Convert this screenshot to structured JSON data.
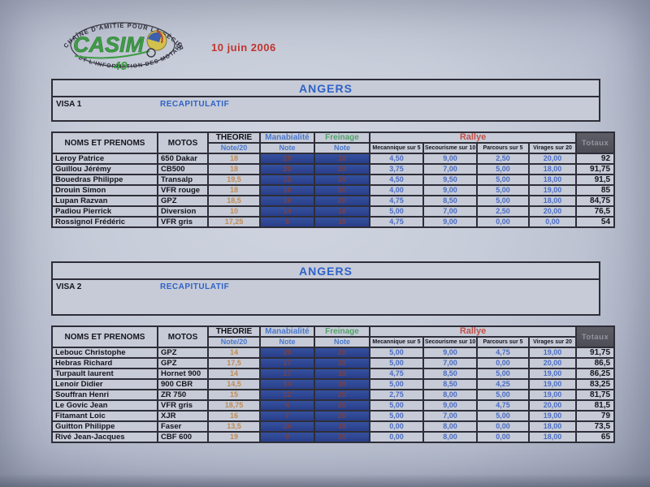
{
  "document": {
    "date": "10 juin 2006",
    "logo": {
      "arc_top": "CHAÎNE D'AMITIÉ POUR LA SÉCURITÉ",
      "arc_bottom": "ET L'INFORMATION DES MOTARDS",
      "name": "CASIM",
      "number": "49"
    }
  },
  "columns": {
    "names": "NOMS ET PRENOMS",
    "motos": "MOTOS",
    "theorie": "THEORIE",
    "note20": "Note/20",
    "maniabilite": "Manabialité",
    "freinage": "Freinage",
    "note": "Note",
    "rallye": "Rallye",
    "rallye_subs": [
      "Mecannique sur 5",
      "Secourisme sur 10",
      "Parcours sur 5",
      "Virages sur 20"
    ],
    "totaux": "Totaux"
  },
  "colors": {
    "title_blue": "#2f62c8",
    "rallye_red": "#c2524a",
    "freinage_green": "#53a06a",
    "theorie_orange": "#c08a52",
    "note_cell_blue": "#2f4a9a",
    "note_value_darkred": "#7e403e",
    "totaux_header_bg": "#54555c",
    "date_red": "#c0342e",
    "logo_green": "#3f9c46"
  },
  "tables": [
    {
      "title": "ANGERS",
      "visa": "VISA 1",
      "recap": "RECAPITULATIF",
      "rows": [
        {
          "name": "Leroy Patrice",
          "moto": "650 Dakar",
          "theorie": "18",
          "mana": "20",
          "frein": "18",
          "mec": "4,50",
          "sec": "9,00",
          "parc": "2,50",
          "vir": "20,00",
          "total": "92"
        },
        {
          "name": "Guillou Jérémy",
          "moto": "CB500",
          "theorie": "18",
          "mana": "20",
          "frein": "20",
          "mec": "3,75",
          "sec": "7,00",
          "parc": "5,00",
          "vir": "18,00",
          "total": "91,75"
        },
        {
          "name": "Bouedras Philippe",
          "moto": "Transalp",
          "theorie": "19,5",
          "mana": "15",
          "frein": "20",
          "mec": "4,50",
          "sec": "9,50",
          "parc": "5,00",
          "vir": "18,00",
          "total": "91,5"
        },
        {
          "name": "Drouin Simon",
          "moto": "VFR rouge",
          "theorie": "18",
          "mana": "10",
          "frein": "20",
          "mec": "4,00",
          "sec": "9,00",
          "parc": "5,00",
          "vir": "19,00",
          "total": "85"
        },
        {
          "name": "Lupan Razvan",
          "moto": "GPZ",
          "theorie": "18,5",
          "mana": "10",
          "frein": "20",
          "mec": "4,75",
          "sec": "8,50",
          "parc": "5,00",
          "vir": "18,00",
          "total": "84,75"
        },
        {
          "name": "Padiou Pierrick",
          "moto": "Diversion",
          "theorie": "10",
          "mana": "14",
          "frein": "18",
          "mec": "5,00",
          "sec": "7,00",
          "parc": "2,50",
          "vir": "20,00",
          "total": "76,5"
        },
        {
          "name": "Rossignol Frédéric",
          "moto": "VFR gris",
          "theorie": "17,25",
          "mana": "5",
          "frein": "18",
          "mec": "4,75",
          "sec": "9,00",
          "parc": "0,00",
          "vir": "0,00",
          "total": "54"
        }
      ]
    },
    {
      "title": "ANGERS",
      "visa": "VISA 2",
      "recap": "RECAPITULATIF",
      "rows": [
        {
          "name": "Lebouc Christophe",
          "moto": "GPZ",
          "theorie": "14",
          "mana": "20",
          "frein": "20",
          "mec": "5,00",
          "sec": "9,00",
          "parc": "4,75",
          "vir": "19,00",
          "total": "91,75"
        },
        {
          "name": "Hebras Richard",
          "moto": "GPZ",
          "theorie": "17,5",
          "mana": "17",
          "frein": "20",
          "mec": "5,00",
          "sec": "7,00",
          "parc": "0,00",
          "vir": "20,00",
          "total": "86,5"
        },
        {
          "name": "Turpault laurent",
          "moto": "Hornet 900",
          "theorie": "14",
          "mana": "17",
          "frein": "18",
          "mec": "4,75",
          "sec": "8,50",
          "parc": "5,00",
          "vir": "19,00",
          "total": "86,25"
        },
        {
          "name": "Lenoir Didier",
          "moto": "900 CBR",
          "theorie": "14,5",
          "mana": "14",
          "frein": "18",
          "mec": "5,00",
          "sec": "8,50",
          "parc": "4,25",
          "vir": "19,00",
          "total": "83,25"
        },
        {
          "name": "Souffran Henri",
          "moto": "ZR 750",
          "theorie": "15",
          "mana": "12",
          "frein": "20",
          "mec": "2,75",
          "sec": "8,00",
          "parc": "5,00",
          "vir": "19,00",
          "total": "81,75"
        },
        {
          "name": "Le Govic Jean",
          "moto": "VFR gris",
          "theorie": "18,75",
          "mana": "4",
          "frein": "20",
          "mec": "5,00",
          "sec": "9,00",
          "parc": "4,75",
          "vir": "20,00",
          "total": "81,5"
        },
        {
          "name": "Fitamant Loic",
          "moto": "XJR",
          "theorie": "16",
          "mana": "7",
          "frein": "20",
          "mec": "5,00",
          "sec": "7,00",
          "parc": "5,00",
          "vir": "19,00",
          "total": "79"
        },
        {
          "name": "Guitton Philippe",
          "moto": "Faser",
          "theorie": "13,5",
          "mana": "16",
          "frein": "18",
          "mec": "0,00",
          "sec": "8,00",
          "parc": "0,00",
          "vir": "18,00",
          "total": "73,5"
        },
        {
          "name": "Rivé Jean-Jacques",
          "moto": "CBF 600",
          "theorie": "19",
          "mana": "0",
          "frein": "20",
          "mec": "0,00",
          "sec": "8,00",
          "parc": "0,00",
          "vir": "18,00",
          "total": "65"
        }
      ]
    }
  ]
}
